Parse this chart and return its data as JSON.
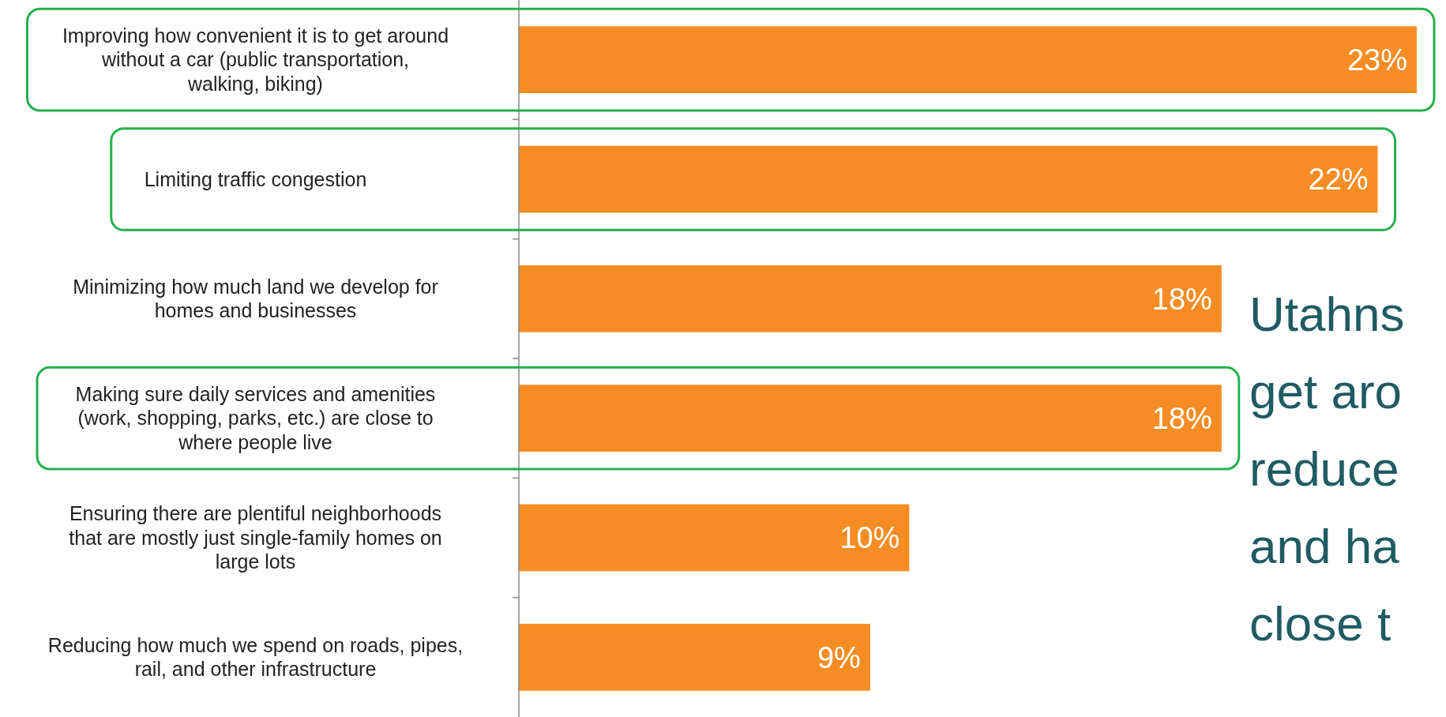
{
  "chart_data": {
    "type": "bar",
    "orientation": "horizontal",
    "categories": [
      "Improving how convenient it is to get around without a car (public transportation, walking, biking)",
      "Limiting traffic congestion",
      "Minimizing how much land we develop for homes and businesses",
      "Making sure daily services and amenities (work, shopping, parks, etc.) are close to where people live",
      "Ensuring there are plentiful neighborhoods that are mostly just single-family homes on large lots",
      "Reducing how much we spend on roads, pipes, rail, and other infrastructure"
    ],
    "values": [
      23,
      22,
      18,
      18,
      10,
      9
    ],
    "color": "#f68d24",
    "value_labels": [
      "23%",
      "22%",
      "18%",
      "18%",
      "10%",
      "9%"
    ],
    "annotations": [
      "Utahns\nget aro\nreduce\nand ha\nclose t"
    ]
  }
}
